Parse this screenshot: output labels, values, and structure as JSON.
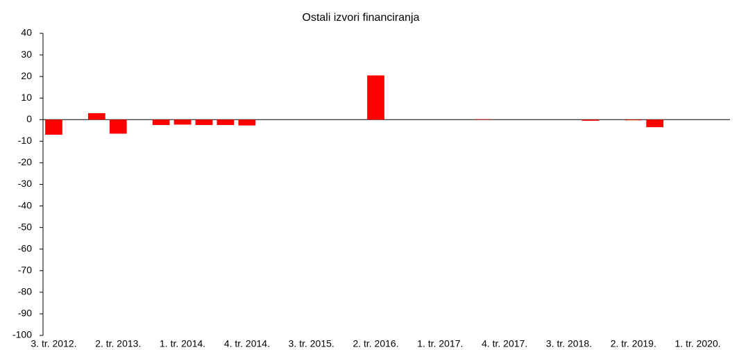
{
  "chart_data": {
    "type": "bar",
    "title": "Ostali izvori financiranja",
    "categories": [
      "3. tr. 2012.",
      null,
      null,
      "2. tr. 2013.",
      null,
      null,
      "1. tr. 2014.",
      null,
      null,
      "4. tr. 2014.",
      null,
      null,
      "3. tr. 2015.",
      null,
      null,
      "2. tr. 2016.",
      null,
      null,
      "1. tr. 2017.",
      null,
      null,
      "4. tr. 2017.",
      null,
      null,
      "3. tr. 2018.",
      null,
      null,
      "2. tr. 2019.",
      null,
      null,
      "1. tr. 2020.",
      null
    ],
    "values": [
      -7,
      0,
      3,
      -6.5,
      0,
      -2.5,
      -2.3,
      -2.5,
      -2.5,
      -2.7,
      0,
      0,
      0,
      0,
      0,
      20.5,
      0,
      0,
      0,
      0,
      0.2,
      0,
      0,
      0,
      0,
      -0.5,
      0,
      -0.3,
      -3.5,
      0,
      0,
      0
    ],
    "color": "#ff0000",
    "ylim": [
      -100,
      40
    ],
    "yticks": [
      -100,
      -90,
      -80,
      -70,
      -60,
      -50,
      -40,
      -30,
      -20,
      -10,
      0,
      10,
      20,
      30,
      40
    ]
  }
}
